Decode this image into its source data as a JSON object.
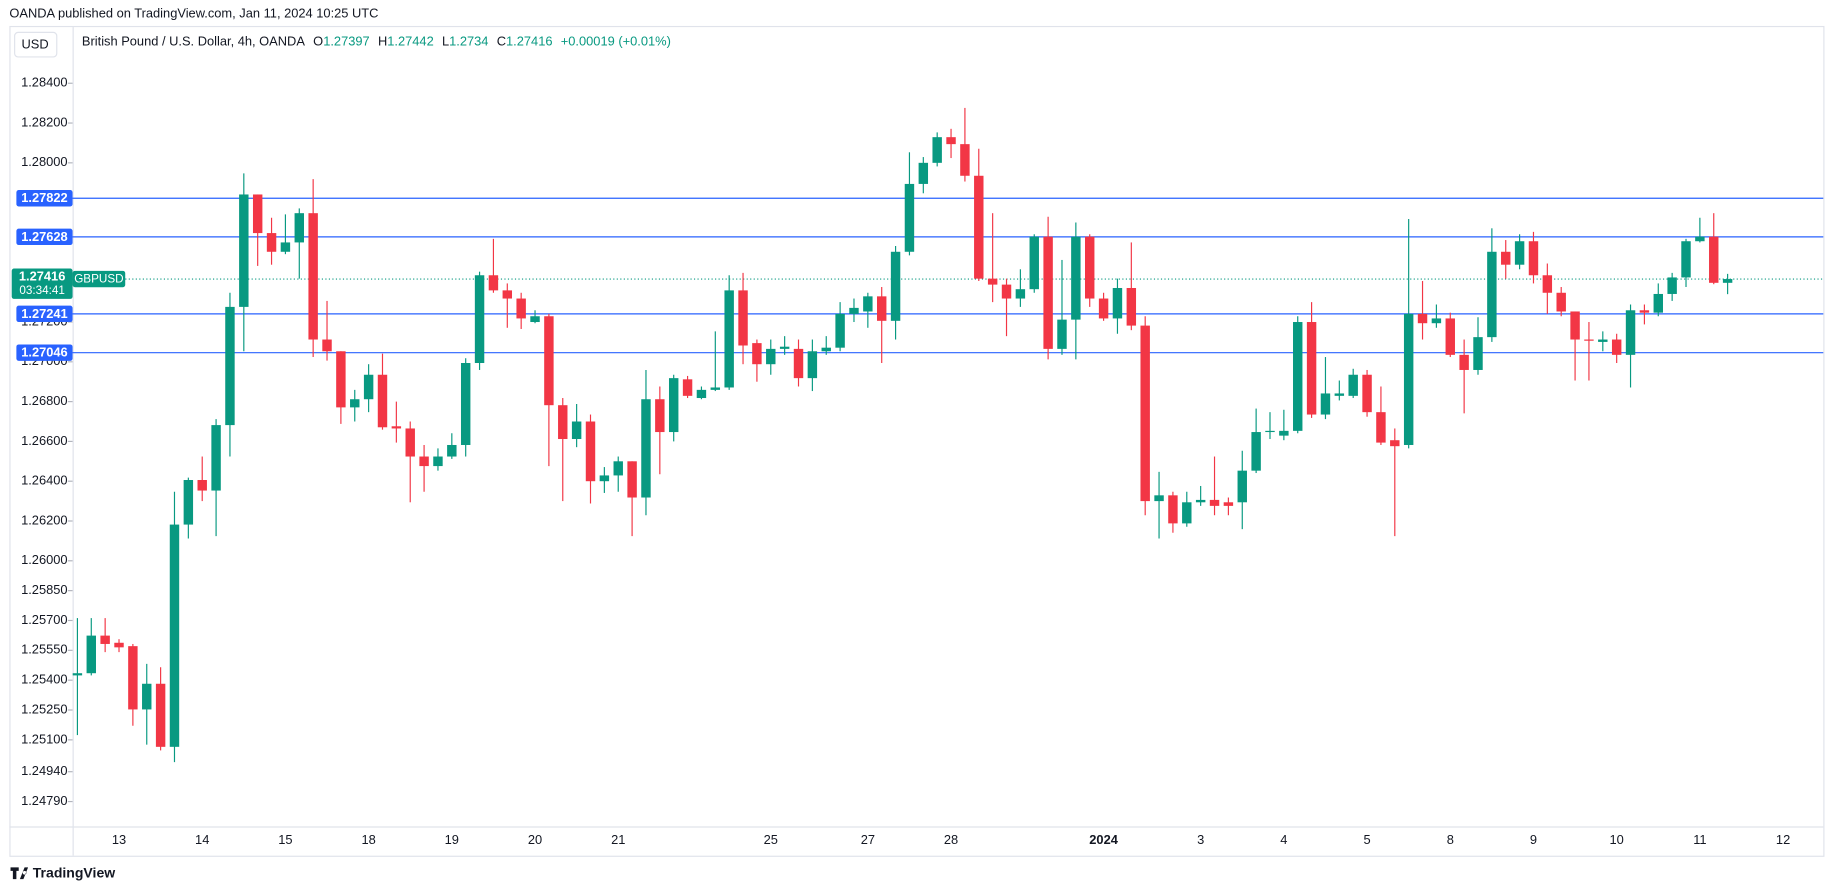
{
  "chart_data": {
    "type": "candlestick",
    "source": "OANDA published on TradingView.com, Jan 11, 2024 10:25 UTC",
    "currency": "USD",
    "title": "British Pound / U.S. Dollar, 4h, OANDA",
    "ohlc_labels": [
      "O",
      "H",
      "L",
      "C"
    ],
    "change": "+0.00019 (+0.01%)",
    "symbol": "GBPUSD",
    "countdown": "03:34:41",
    "brand": "TradingView",
    "up_color": "#089981",
    "down_color": "#f23645",
    "hline_color": "#2962ff",
    "categories": [
      null,
      null,
      null,
      "13",
      null,
      null,
      null,
      null,
      null,
      "14",
      null,
      null,
      null,
      null,
      null,
      "15",
      null,
      null,
      null,
      null,
      null,
      "18",
      null,
      null,
      null,
      null,
      null,
      "19",
      null,
      null,
      null,
      null,
      null,
      "20",
      null,
      null,
      null,
      null,
      null,
      "21",
      null,
      null,
      null,
      null,
      null,
      null,
      null,
      null,
      null,
      null,
      "25",
      null,
      null,
      null,
      null,
      null,
      null,
      "27",
      null,
      null,
      null,
      null,
      null,
      "28",
      null,
      null,
      null,
      null,
      null,
      null,
      null,
      null,
      null,
      null,
      "2024",
      null,
      null,
      null,
      null,
      null,
      null,
      "3",
      null,
      null,
      null,
      null,
      null,
      "4",
      null,
      null,
      null,
      null,
      null,
      "5",
      null,
      null,
      null,
      null,
      null,
      "8",
      null,
      null,
      null,
      null,
      null,
      "9",
      null,
      null,
      null,
      null,
      null,
      "10",
      null,
      null,
      null,
      null,
      null,
      "11",
      null,
      null,
      null,
      null,
      null,
      "12"
    ],
    "open": [
      1.25424,
      1.25435,
      1.25624,
      1.25588,
      1.25571,
      1.25253,
      1.25382,
      1.25065,
      1.26182,
      1.26406,
      1.26353,
      1.26682,
      1.27276,
      1.27841,
      1.27647,
      1.27553,
      1.276,
      1.27747,
      1.27112,
      1.27053,
      1.26771,
      1.26812,
      1.26935,
      1.26676,
      1.26665,
      1.26524,
      1.26476,
      1.26524,
      1.26582,
      1.26994,
      1.27435,
      1.27359,
      1.27318,
      1.272,
      1.27229,
      1.26782,
      1.26612,
      1.267,
      1.264,
      1.26429,
      1.265,
      1.26318,
      1.26812,
      1.26647,
      1.26912,
      1.26818,
      1.26859,
      1.26871,
      1.27359,
      1.27094,
      1.26988,
      1.27065,
      1.27065,
      1.26918,
      1.27053,
      1.27071,
      1.27241,
      1.27253,
      1.27329,
      1.27206,
      1.27553,
      1.27894,
      1.28,
      1.28129,
      1.28094,
      1.27935,
      1.27418,
      1.27388,
      1.27318,
      1.27365,
      1.27629,
      1.27065,
      1.27212,
      1.27629,
      1.27318,
      1.27218,
      1.27371,
      1.27182,
      1.263,
      1.26329,
      1.26188,
      1.26294,
      1.26306,
      1.26294,
      1.26294,
      1.26453,
      1.26647,
      1.26629,
      1.26653,
      1.272,
      1.26735,
      1.26829,
      1.26829,
      1.26935,
      1.26747,
      1.26606,
      1.26582,
      1.27241,
      1.27194,
      1.27218,
      1.27035,
      1.26959,
      1.27124,
      1.27553,
      1.27488,
      1.27606,
      1.27435,
      1.27347,
      1.27253,
      1.27112,
      1.271,
      1.27112,
      1.27035,
      1.27259,
      1.27247,
      1.27341,
      1.27424,
      1.27606,
      1.27629,
      1.27397,
      null,
      null,
      null,
      null
    ],
    "high": [
      1.25712,
      1.25712,
      1.25712,
      1.25606,
      1.25582,
      1.25482,
      1.25465,
      1.26347,
      1.26418,
      1.26524,
      1.26712,
      1.27347,
      1.27947,
      1.27841,
      1.27724,
      1.27741,
      1.27771,
      1.27918,
      1.27306,
      1.27053,
      1.26859,
      1.26988,
      1.27041,
      1.268,
      1.267,
      1.26582,
      1.26565,
      1.26641,
      1.27018,
      1.27453,
      1.27618,
      1.27394,
      1.27347,
      1.27259,
      1.27241,
      1.26818,
      1.26788,
      1.26735,
      1.26471,
      1.26524,
      1.265,
      1.26959,
      1.26876,
      1.26935,
      1.26929,
      1.26876,
      1.27153,
      1.27435,
      1.27447,
      1.27112,
      1.27112,
      1.27129,
      1.27112,
      1.27112,
      1.27129,
      1.273,
      1.27318,
      1.27347,
      1.27376,
      1.27582,
      1.28053,
      1.28029,
      1.28153,
      1.28171,
      1.28276,
      1.28071,
      1.27747,
      1.27418,
      1.27465,
      1.27641,
      1.27729,
      1.27512,
      1.277,
      1.27641,
      1.27347,
      1.27418,
      1.276,
      1.27229,
      1.26447,
      1.26347,
      1.26347,
      1.26376,
      1.26524,
      1.26318,
      1.26553,
      1.26765,
      1.26747,
      1.26759,
      1.27229,
      1.273,
      1.27024,
      1.26906,
      1.26965,
      1.26959,
      1.26876,
      1.26665,
      1.27718,
      1.27406,
      1.27288,
      1.27247,
      1.27112,
      1.27224,
      1.27671,
      1.27612,
      1.27641,
      1.27653,
      1.27494,
      1.27376,
      1.27253,
      1.272,
      1.27153,
      1.27141,
      1.27288,
      1.27288,
      1.27394,
      1.27447,
      1.27618,
      1.27724,
      1.27747,
      1.27442,
      null,
      null,
      null,
      null
    ],
    "low": [
      1.25124,
      1.25424,
      1.25541,
      1.25541,
      1.25171,
      1.25076,
      1.25047,
      1.24988,
      1.26112,
      1.263,
      1.26124,
      1.26524,
      1.27053,
      1.27482,
      1.27488,
      1.27541,
      1.27418,
      1.27024,
      1.27006,
      1.26688,
      1.267,
      1.26747,
      1.26659,
      1.26594,
      1.26294,
      1.26347,
      1.26453,
      1.26512,
      1.26524,
      1.26959,
      1.27347,
      1.27171,
      1.27165,
      1.27194,
      1.26476,
      1.263,
      1.26571,
      1.26288,
      1.26341,
      1.26347,
      1.26124,
      1.26229,
      1.26435,
      1.266,
      1.26818,
      1.26812,
      1.26853,
      1.26859,
      1.26988,
      1.269,
      1.26935,
      1.27035,
      1.26876,
      1.26853,
      1.27035,
      1.27053,
      1.272,
      1.27171,
      1.26994,
      1.27112,
      1.27535,
      1.27847,
      1.27982,
      1.28024,
      1.27906,
      1.27406,
      1.273,
      1.27129,
      1.27276,
      1.27347,
      1.27012,
      1.27035,
      1.27012,
      1.27276,
      1.27206,
      1.27141,
      1.27159,
      1.26229,
      1.26112,
      1.26141,
      1.26171,
      1.26276,
      1.26229,
      1.26229,
      1.26159,
      1.26441,
      1.26612,
      1.26606,
      1.26641,
      1.26718,
      1.26712,
      1.26806,
      1.26818,
      1.26724,
      1.26582,
      1.26124,
      1.26565,
      1.27112,
      1.27171,
      1.27024,
      1.26741,
      1.26935,
      1.271,
      1.27418,
      1.27465,
      1.27394,
      1.27241,
      1.27229,
      1.26906,
      1.26906,
      1.27053,
      1.26994,
      1.26871,
      1.27188,
      1.27229,
      1.27306,
      1.27376,
      1.276,
      1.2739,
      1.2734,
      null,
      null,
      null,
      null
    ],
    "close": [
      1.25435,
      1.25624,
      1.25582,
      1.25565,
      1.25253,
      1.25382,
      1.25065,
      1.26182,
      1.26406,
      1.26353,
      1.26682,
      1.27276,
      1.27841,
      1.27647,
      1.27553,
      1.276,
      1.27747,
      1.27112,
      1.27053,
      1.26771,
      1.26812,
      1.26935,
      1.26671,
      1.26665,
      1.26524,
      1.26476,
      1.26524,
      1.26582,
      1.26994,
      1.27435,
      1.27359,
      1.27318,
      1.27218,
      1.27229,
      1.26782,
      1.26612,
      1.267,
      1.264,
      1.26429,
      1.265,
      1.26318,
      1.26812,
      1.26647,
      1.26918,
      1.26829,
      1.26859,
      1.26871,
      1.27359,
      1.27082,
      1.26988,
      1.27065,
      1.27076,
      1.26918,
      1.27053,
      1.27071,
      1.27241,
      1.27271,
      1.27329,
      1.27206,
      1.27553,
      1.27894,
      1.28,
      1.28129,
      1.28094,
      1.27935,
      1.27418,
      1.27388,
      1.27318,
      1.27365,
      1.27629,
      1.27065,
      1.27212,
      1.27629,
      1.27318,
      1.27218,
      1.27371,
      1.27182,
      1.263,
      1.26329,
      1.26188,
      1.26294,
      1.26306,
      1.26276,
      1.26276,
      1.26453,
      1.26647,
      1.26653,
      1.26653,
      1.272,
      1.26735,
      1.26841,
      1.26841,
      1.26935,
      1.26747,
      1.26594,
      1.26576,
      1.27241,
      1.27194,
      1.27218,
      1.27035,
      1.26959,
      1.27124,
      1.27553,
      1.27488,
      1.27606,
      1.27435,
      1.27347,
      1.27253,
      1.27112,
      1.27106,
      1.27112,
      1.27035,
      1.27259,
      1.27247,
      1.27341,
      1.27424,
      1.27606,
      1.27629,
      1.27397,
      1.27416,
      null,
      null,
      null,
      null
    ],
    "ylim": [
      1.24665,
      1.28535
    ],
    "yticks": [
      {
        "value": 1.284,
        "label": "1.28400"
      },
      {
        "value": 1.282,
        "label": "1.28200"
      },
      {
        "value": 1.28,
        "label": "1.28000"
      },
      {
        "value": 1.272,
        "label": "1.27200"
      },
      {
        "value": 1.27,
        "label": "1.27000"
      },
      {
        "value": 1.268,
        "label": "1.26800"
      },
      {
        "value": 1.266,
        "label": "1.26600"
      },
      {
        "value": 1.264,
        "label": "1.26400"
      },
      {
        "value": 1.262,
        "label": "1.26200"
      },
      {
        "value": 1.26,
        "label": "1.26000"
      },
      {
        "value": 1.2585,
        "label": "1.25850"
      },
      {
        "value": 1.257,
        "label": "1.25700"
      },
      {
        "value": 1.2555,
        "label": "1.25550"
      },
      {
        "value": 1.254,
        "label": "1.25400"
      },
      {
        "value": 1.2525,
        "label": "1.25250"
      },
      {
        "value": 1.251,
        "label": "1.25100"
      },
      {
        "value": 1.2494,
        "label": "1.24940"
      },
      {
        "value": 1.2479,
        "label": "1.24790"
      }
    ],
    "hlines": [
      1.27822,
      1.27628,
      1.27241,
      1.27046
    ]
  }
}
